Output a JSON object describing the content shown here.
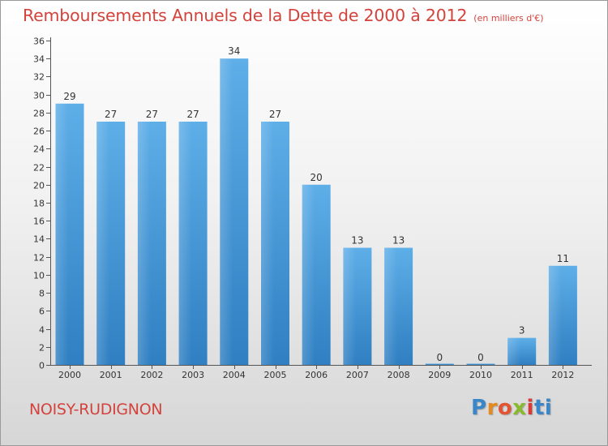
{
  "header": {
    "title": "Remboursements Annuels de la Dette de 2000 à 2012",
    "unit": "(en milliers d'€)"
  },
  "footer": {
    "commune": "NOISY-RUDIGNON",
    "logo_letters": [
      "P",
      "r",
      "o",
      "x",
      "i",
      "ti"
    ]
  },
  "colors": {
    "bar_top": "#5eaee8",
    "bar_bottom": "#2f7fc2",
    "title": "#d3433c"
  },
  "chart_data": {
    "type": "bar",
    "title": "Remboursements Annuels de la Dette de 2000 à 2012",
    "subtitle": "(en milliers d'€)",
    "xlabel": "",
    "ylabel": "",
    "categories": [
      "2000",
      "2001",
      "2002",
      "2003",
      "2004",
      "2005",
      "2006",
      "2007",
      "2008",
      "2009",
      "2010",
      "2011",
      "2012"
    ],
    "values": [
      29,
      27,
      27,
      27,
      34,
      27,
      20,
      13,
      13,
      0,
      0,
      3,
      11
    ],
    "ylim": [
      0,
      36
    ],
    "yticks": [
      0,
      2,
      4,
      6,
      8,
      10,
      12,
      14,
      16,
      18,
      20,
      22,
      24,
      26,
      28,
      30,
      32,
      34,
      36
    ],
    "grid": false,
    "legend": "none"
  }
}
